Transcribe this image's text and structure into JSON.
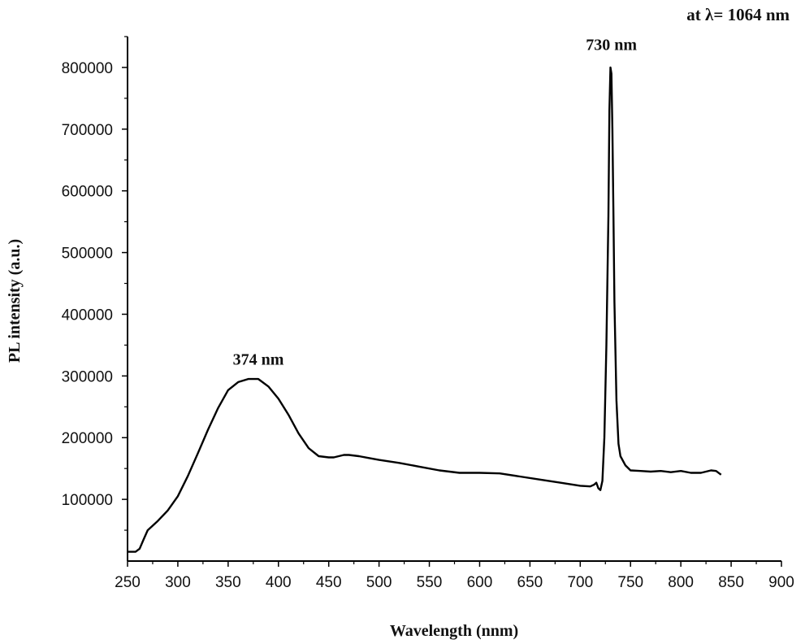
{
  "chart_data": {
    "type": "line",
    "xlabel": "Wavelength (nnm)",
    "ylabel": "PL intensity (a.u.)",
    "xlim": [
      250,
      900
    ],
    "ylim": [
      0,
      850000
    ],
    "x_ticks": [
      250,
      300,
      350,
      400,
      450,
      500,
      550,
      600,
      650,
      700,
      750,
      800,
      850,
      900
    ],
    "y_ticks": [
      100000,
      200000,
      300000,
      400000,
      500000,
      600000,
      700000,
      800000
    ],
    "grid": false,
    "annotations": [
      {
        "text": "374 nm",
        "x": 380,
        "y": 318000
      },
      {
        "text": "730 nm",
        "x": 731,
        "y": 828000
      },
      {
        "text": "at λ= 1064 nm",
        "corner": "top-right"
      }
    ],
    "series": [
      {
        "color": "#000000",
        "x": [
          250,
          258,
          262,
          266,
          270,
          280,
          290,
          300,
          310,
          320,
          330,
          340,
          350,
          360,
          370,
          380,
          390,
          400,
          410,
          420,
          430,
          440,
          450,
          455,
          460,
          465,
          470,
          480,
          490,
          500,
          520,
          540,
          560,
          580,
          600,
          620,
          640,
          660,
          680,
          700,
          710,
          714,
          716,
          718,
          720,
          722,
          724,
          726,
          728,
          729,
          730,
          731,
          732,
          733,
          734,
          736,
          738,
          740,
          745,
          750,
          760,
          770,
          780,
          790,
          800,
          810,
          820,
          830,
          835,
          840
        ],
        "y": [
          15000,
          15000,
          20000,
          35000,
          50000,
          65000,
          82000,
          105000,
          138000,
          175000,
          213000,
          248000,
          277000,
          290000,
          295000,
          295000,
          283000,
          263000,
          237000,
          207000,
          183000,
          170000,
          168000,
          168000,
          170000,
          172000,
          172000,
          170000,
          167000,
          164000,
          159000,
          153000,
          147000,
          143000,
          143000,
          142000,
          137000,
          132000,
          127000,
          122000,
          121000,
          124000,
          127000,
          118000,
          115000,
          130000,
          200000,
          350000,
          560000,
          730000,
          800000,
          790000,
          700000,
          560000,
          420000,
          260000,
          190000,
          170000,
          155000,
          147000,
          146000,
          145000,
          146000,
          144000,
          146000,
          143000,
          143000,
          147000,
          146000,
          140000
        ]
      }
    ]
  }
}
